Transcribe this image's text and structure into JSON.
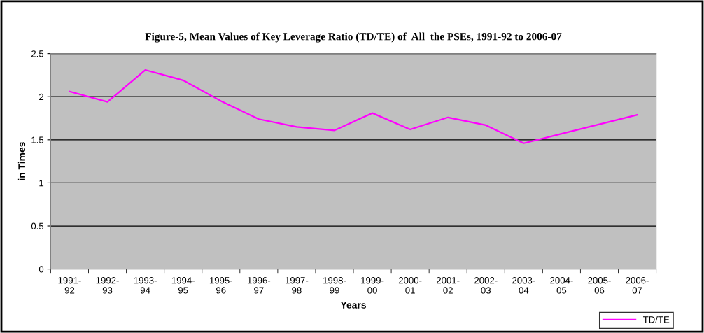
{
  "chart_data": {
    "type": "line",
    "title": "Figure-5, Mean Values of Key Leverage Ratio (TD/TE) of  All  the PSEs, 1991-92 to 2006-07",
    "xlabel": "Years",
    "ylabel": "in Times",
    "categories": [
      "1991-\n92",
      "1992-\n93",
      "1993-\n94",
      "1994-\n95",
      "1995-\n96",
      "1996-\n97",
      "1997-\n98",
      "1998-\n99",
      "1999-\n00",
      "2000-\n01",
      "2001-\n02",
      "2002-\n03",
      "2003-\n04",
      "2004-\n05",
      "2005-\n06",
      "2006-\n07"
    ],
    "series": [
      {
        "name": "TD/TE",
        "color": "#ff00ff",
        "values": [
          2.06,
          1.94,
          2.31,
          2.19,
          1.95,
          1.74,
          1.65,
          1.61,
          1.81,
          1.62,
          1.76,
          1.67,
          1.46,
          1.57,
          1.68,
          1.79
        ]
      }
    ],
    "ylim": [
      0,
      2.5
    ],
    "yticks": [
      0,
      0.5,
      1,
      1.5,
      2,
      2.5
    ],
    "grid": "y",
    "legend": "bottom right",
    "marker": "none",
    "line_style": "solid"
  }
}
